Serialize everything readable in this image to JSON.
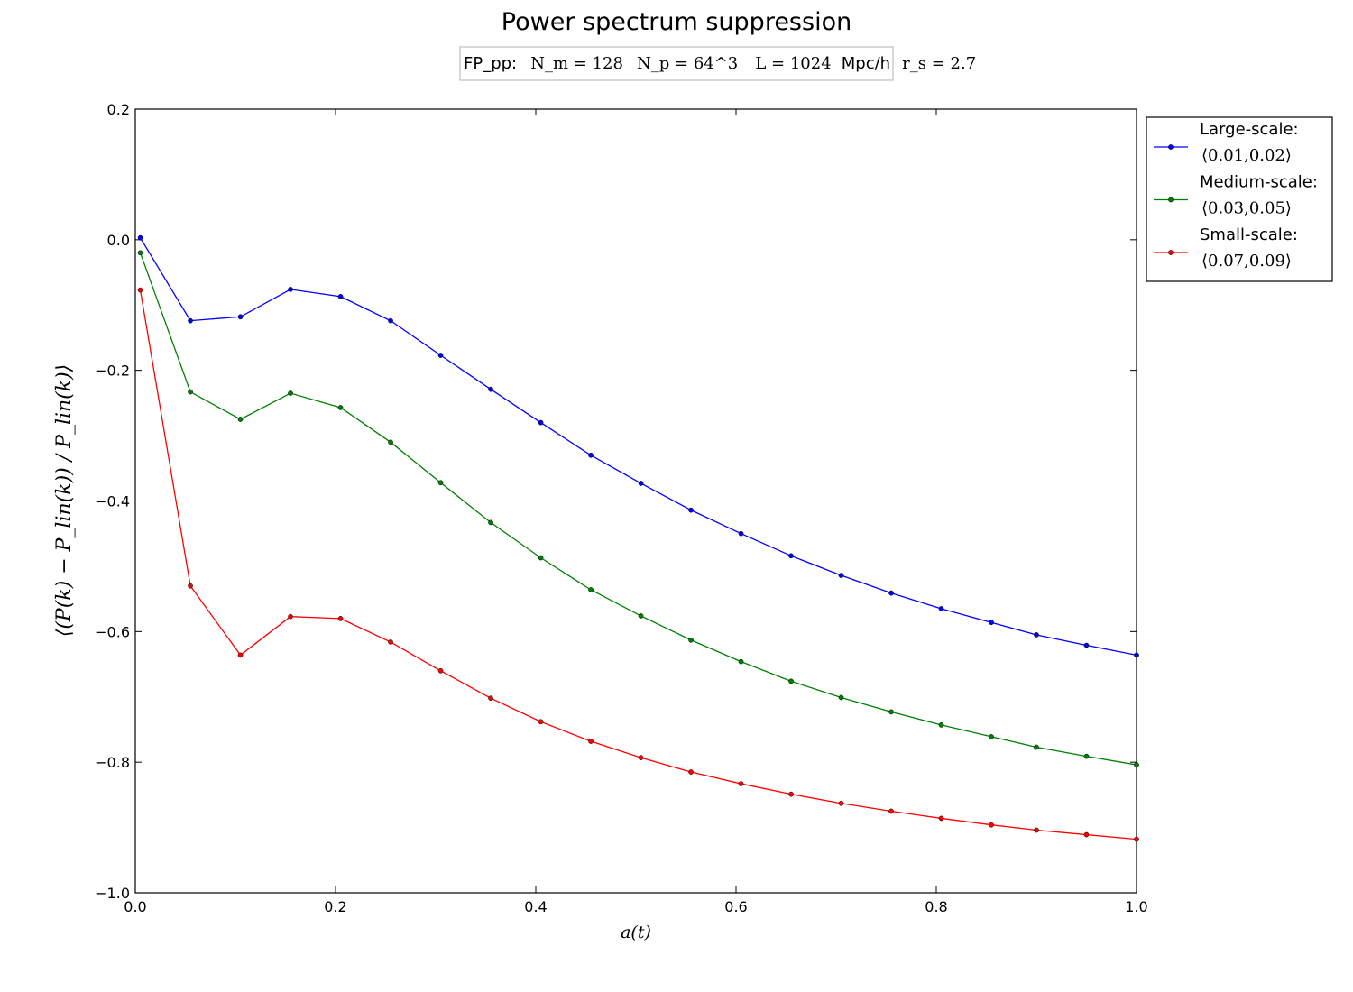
{
  "chart_data": {
    "type": "line",
    "title": "Power spectrum suppression",
    "subtitle": {
      "prefix": "FP_pp:",
      "nm": "N_m = 128",
      "np": "N_p = 64^3",
      "l": "L = 1024",
      "l_unit": "Mpc/h",
      "rs": "r_s = 2.7"
    },
    "xlabel": "a(t)",
    "ylabel": "⟨(P(k) − P_lin(k)) / P_lin(k)⟩",
    "xlim": [
      0.0,
      1.0
    ],
    "ylim": [
      -1.0,
      0.2
    ],
    "xticks": [
      "0.0",
      "0.2",
      "0.4",
      "0.6",
      "0.8",
      "1.0"
    ],
    "yticks": [
      "0.2",
      "0.0",
      "−0.2",
      "−0.4",
      "−0.6",
      "−0.8",
      "−1.0"
    ],
    "legend_position": "outside-right-top",
    "x": [
      0.005,
      0.055,
      0.105,
      0.155,
      0.205,
      0.255,
      0.305,
      0.355,
      0.405,
      0.455,
      0.505,
      0.555,
      0.605,
      0.655,
      0.705,
      0.755,
      0.805,
      0.855,
      0.9,
      0.95,
      1.0
    ],
    "series": [
      {
        "name": "Large-scale:",
        "range": "⟨0.01,0.02⟩",
        "color": "#0000ff",
        "values": [
          0.003,
          -0.124,
          -0.118,
          -0.076,
          -0.087,
          -0.124,
          -0.177,
          -0.229,
          -0.28,
          -0.33,
          -0.373,
          -0.414,
          -0.45,
          -0.484,
          -0.514,
          -0.541,
          -0.565,
          -0.586,
          -0.605,
          -0.621,
          -0.636
        ]
      },
      {
        "name": "Medium-scale:",
        "range": "⟨0.03,0.05⟩",
        "color": "#008000",
        "values": [
          -0.02,
          -0.233,
          -0.275,
          -0.235,
          -0.257,
          -0.31,
          -0.372,
          -0.433,
          -0.487,
          -0.536,
          -0.576,
          -0.613,
          -0.646,
          -0.676,
          -0.701,
          -0.723,
          -0.743,
          -0.761,
          -0.777,
          -0.791,
          -0.804
        ]
      },
      {
        "name": "Small-scale:",
        "range": "⟨0.07,0.09⟩",
        "color": "#ff0000",
        "values": [
          -0.077,
          -0.53,
          -0.636,
          -0.577,
          -0.58,
          -0.616,
          -0.66,
          -0.702,
          -0.738,
          -0.768,
          -0.793,
          -0.815,
          -0.833,
          -0.849,
          -0.863,
          -0.875,
          -0.886,
          -0.896,
          -0.904,
          -0.911,
          -0.918
        ]
      }
    ]
  }
}
